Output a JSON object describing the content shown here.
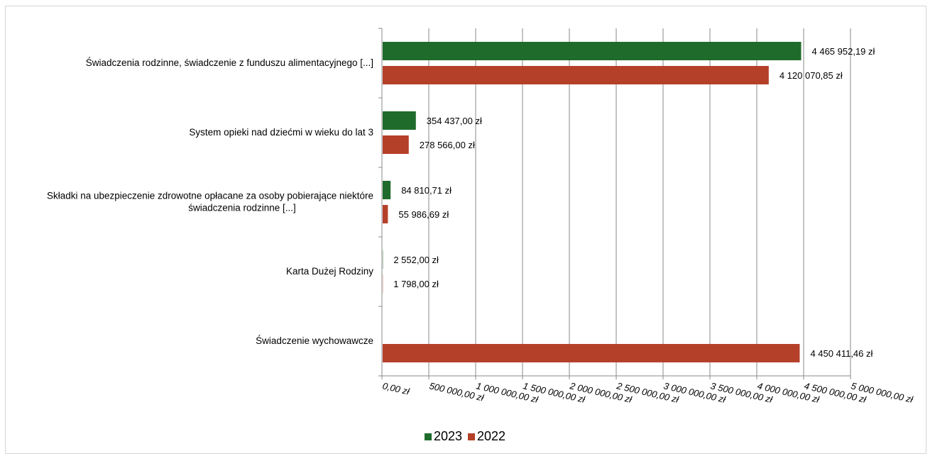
{
  "chart_data": {
    "type": "bar",
    "orientation": "horizontal",
    "categories": [
      [
        "Świadczenia rodzinne, świadczenie z funduszu alimentacyjnego [...]"
      ],
      [
        "System opieki nad dziećmi w wieku do lat 3"
      ],
      [
        "Składki na ubezpieczenie zdrowotne opłacane za osoby pobierające niektóre",
        "świadczenia rodzinne [...]"
      ],
      [
        "Karta Dużej Rodziny"
      ],
      [
        "Świadczenie wychowawcze"
      ]
    ],
    "series": [
      {
        "name": "2023",
        "color": "#1f6b2b",
        "values": [
          4465952.19,
          354437.0,
          84810.71,
          2552.0,
          null
        ],
        "labels": [
          "4 465 952,19 zł",
          "354 437,00 zł",
          "84 810,71 zł",
          "2 552,00 zł",
          ""
        ]
      },
      {
        "name": "2022",
        "color": "#b5402a",
        "values": [
          4120070.85,
          278566.0,
          55986.69,
          1798.0,
          4450411.46
        ],
        "labels": [
          "4 120 070,85 zł",
          "278 566,00 zł",
          "55 986,69 zł",
          "1 798,00 zł",
          "4 450 411,46 zł"
        ]
      }
    ],
    "xlim": [
      0,
      5000000
    ],
    "xticks": [
      0,
      500000,
      1000000,
      1500000,
      2000000,
      2500000,
      3000000,
      3500000,
      4000000,
      4500000,
      5000000
    ],
    "xtick_labels": [
      "0,00 zł",
      "500 000,00 zł",
      "1 000 000,00 zł",
      "1 500 000,00 zł",
      "2 000 000,00 zł",
      "2 500 000,00 zł",
      "3 000 000,00 zł",
      "3 500 000,00 zł",
      "4 000 000,00 zł",
      "4 500 000,00 zł",
      "5 000 000,00 zł"
    ],
    "grid": true,
    "legend_position": "bottom"
  }
}
